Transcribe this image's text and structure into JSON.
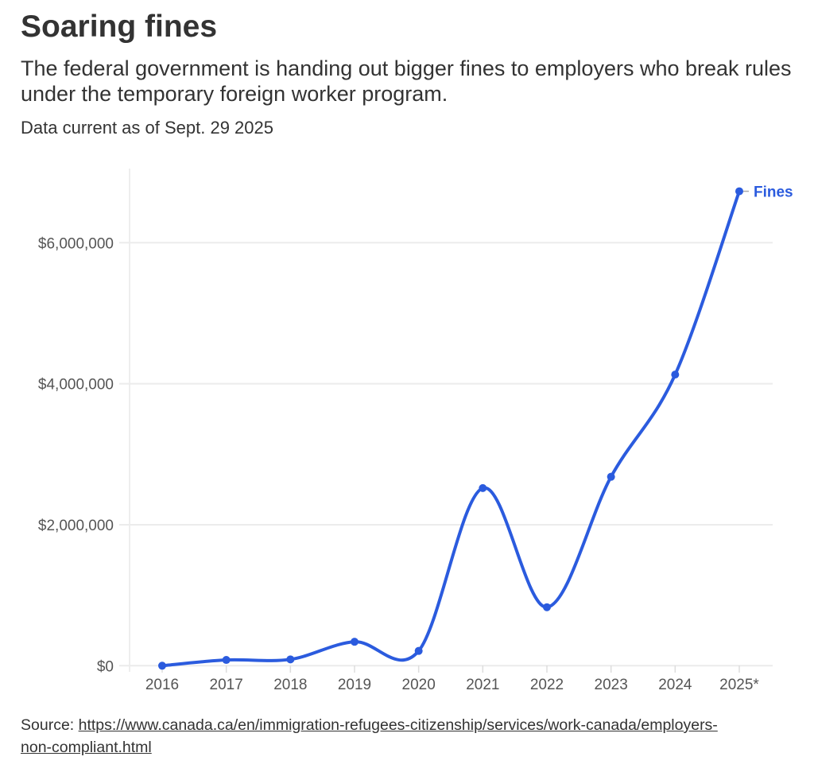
{
  "header": {
    "title": "Soaring fines",
    "subtitle": "The federal government is handing out bigger fines to employers who break rules under the temporary foreign worker program.",
    "note": "Data current as of Sept. 29 2025"
  },
  "footer": {
    "source_label": "Source: ",
    "source_link": "https://www.canada.ca/en/immigration-refugees-citizenship/services/work-canada/employers-non-compliant.html"
  },
  "chart_data": {
    "type": "line",
    "title": "Soaring fines",
    "xlabel": "",
    "ylabel": "",
    "categories": [
      "2016",
      "2017",
      "2018",
      "2019",
      "2020",
      "2021",
      "2022",
      "2023",
      "2024",
      "2025*"
    ],
    "series": [
      {
        "name": "Fines",
        "color": "#2b5bde",
        "values": [
          0,
          82000,
          90000,
          340000,
          210000,
          2520000,
          830000,
          2680000,
          4130000,
          6730000
        ]
      }
    ],
    "ylim": [
      0,
      7000000
    ],
    "yticks": [
      0,
      2000000,
      4000000,
      6000000
    ],
    "ytick_labels": [
      "$0",
      "$2,000,000",
      "$4,000,000",
      "$6,000,000"
    ],
    "grid": true,
    "legend": "end-label"
  }
}
